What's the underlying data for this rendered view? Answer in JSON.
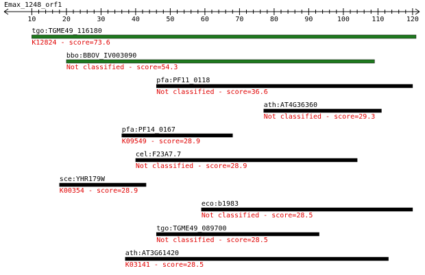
{
  "chart_data": {
    "type": "alignment",
    "title": "Emax_1248_orf1",
    "xlim": [
      2,
      122
    ],
    "xticks": [
      10,
      20,
      30,
      40,
      50,
      60,
      70,
      80,
      90,
      100,
      110,
      120
    ],
    "hits": [
      {
        "name": "tgo:TGME49_116180",
        "annotation": "K12824 - score=73.6",
        "start": 10,
        "end": 121,
        "color": "#1f7a1f"
      },
      {
        "name": "bbo:BBOV_IV003090",
        "annotation": "Not classified - score=54.3",
        "start": 20,
        "end": 109,
        "color": "#1f7a1f"
      },
      {
        "name": "pfa:PF11_0118",
        "annotation": "Not classified - score=36.6",
        "start": 46,
        "end": 120,
        "color": "#000000"
      },
      {
        "name": "ath:AT4G36360",
        "annotation": "Not classified - score=29.3",
        "start": 77,
        "end": 111,
        "color": "#000000"
      },
      {
        "name": "pfa:PF14_0167",
        "annotation": "K09549 - score=28.9",
        "start": 36,
        "end": 68,
        "color": "#000000"
      },
      {
        "name": "cel:F23A7.7",
        "annotation": "Not classified - score=28.9",
        "start": 40,
        "end": 104,
        "color": "#000000"
      },
      {
        "name": "sce:YHR179W",
        "annotation": "K00354 - score=28.9",
        "start": 18,
        "end": 43,
        "color": "#000000"
      },
      {
        "name": "eco:b1983",
        "annotation": "Not classified - score=28.5",
        "start": 59,
        "end": 120,
        "color": "#000000"
      },
      {
        "name": "tgo:TGME49_089700",
        "annotation": "Not classified - score=28.5",
        "start": 46,
        "end": 93,
        "color": "#000000"
      },
      {
        "name": "ath:AT3G61420",
        "annotation": "K03141 - score=28.5",
        "start": 37,
        "end": 113,
        "color": "#000000"
      }
    ]
  }
}
